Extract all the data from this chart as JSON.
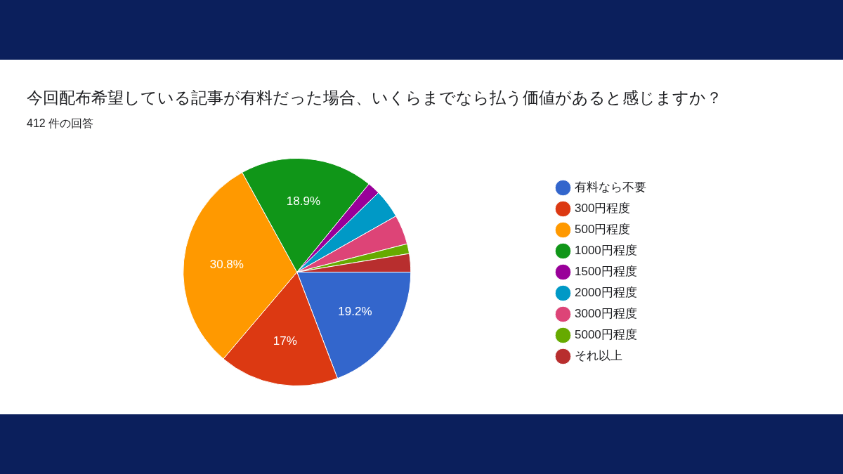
{
  "chart_data": {
    "type": "pie",
    "title": "今回配布希望している記事が有料だった場合、いくらまでなら払う価値があると感じますか？",
    "subtitle": "412 件の回答",
    "categories": [
      "有料なら不要",
      "300円程度",
      "500円程度",
      "1000円程度",
      "1500円程度",
      "2000円程度",
      "3000円程度",
      "5000円程度",
      "それ以上"
    ],
    "values": [
      19.2,
      17,
      30.8,
      18.9,
      1.8,
      4.1,
      4.2,
      1.4,
      2.6
    ],
    "colors": [
      "#3366cc",
      "#dc3912",
      "#ff9900",
      "#109618",
      "#990099",
      "#0099c6",
      "#dd4477",
      "#66aa00",
      "#b82e2e"
    ],
    "value_labels": [
      "19.2%",
      "17%",
      "30.8%",
      "18.9%",
      null,
      null,
      null,
      null,
      null
    ],
    "legend": "right"
  }
}
